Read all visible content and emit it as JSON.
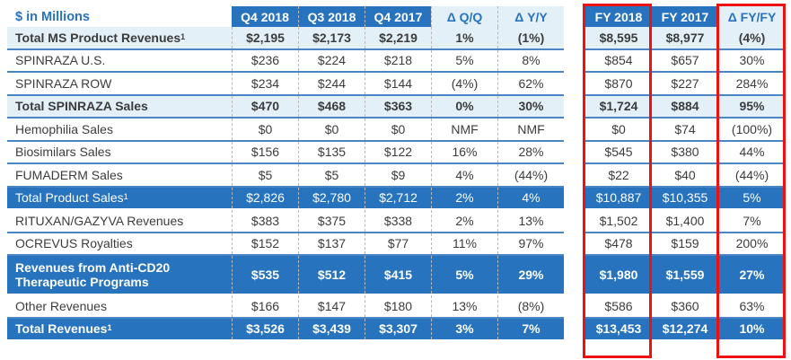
{
  "table": {
    "title": "$ in Millions",
    "quarter_headers": [
      "Q4 2018",
      "Q3 2018",
      "Q4 2017",
      "Δ Q/Q",
      "Δ Y/Y"
    ],
    "fy_headers": [
      "FY 2018",
      "FY 2017",
      "Δ FY/FY"
    ],
    "rows": [
      {
        "label": "Total MS Product Revenues",
        "sup": "1",
        "style": "highlight",
        "q": [
          "$2,195",
          "$2,173",
          "$2,219",
          "1%",
          "(1%)"
        ],
        "fy": [
          "$8,595",
          "$8,977",
          "(4%)"
        ]
      },
      {
        "label": "SPINRAZA U.S.",
        "sup": "",
        "style": "normal",
        "q": [
          "$236",
          "$224",
          "$218",
          "5%",
          "8%"
        ],
        "fy": [
          "$854",
          "$657",
          "30%"
        ]
      },
      {
        "label": "SPINRAZA ROW",
        "sup": "",
        "style": "normal",
        "q": [
          "$234",
          "$244",
          "$144",
          "(4%)",
          "62%"
        ],
        "fy": [
          "$870",
          "$227",
          "284%"
        ]
      },
      {
        "label": "Total SPINRAZA Sales",
        "sup": "",
        "style": "highlight",
        "q": [
          "$470",
          "$468",
          "$363",
          "0%",
          "30%"
        ],
        "fy": [
          "$1,724",
          "$884",
          "95%"
        ]
      },
      {
        "label": "Hemophilia Sales",
        "sup": "",
        "style": "normal",
        "q": [
          "$0",
          "$0",
          "$0",
          "NMF",
          "NMF"
        ],
        "fy": [
          "$0",
          "$74",
          "(100%)"
        ]
      },
      {
        "label": "Biosimilars Sales",
        "sup": "",
        "style": "normal",
        "q": [
          "$156",
          "$135",
          "$122",
          "16%",
          "28%"
        ],
        "fy": [
          "$545",
          "$380",
          "44%"
        ]
      },
      {
        "label": "FUMADERM Sales",
        "sup": "",
        "style": "normal",
        "q": [
          "$5",
          "$5",
          "$9",
          "4%",
          "(44%)"
        ],
        "fy": [
          "$22",
          "$40",
          "(44%)"
        ]
      },
      {
        "label": "Total Product Sales",
        "sup": "1",
        "style": "blue",
        "q": [
          "$2,826",
          "$2,780",
          "$2,712",
          "2%",
          "4%"
        ],
        "fy": [
          "$10,887",
          "$10,355",
          "5%"
        ]
      },
      {
        "label": "RITUXAN/GAZYVA Revenues",
        "sup": "",
        "style": "normal",
        "q": [
          "$383",
          "$375",
          "$338",
          "2%",
          "13%"
        ],
        "fy": [
          "$1,502",
          "$1,400",
          "7%"
        ]
      },
      {
        "label": "OCREVUS Royalties",
        "sup": "",
        "style": "normal",
        "q": [
          "$152",
          "$137",
          "$77",
          "11%",
          "97%"
        ],
        "fy": [
          "$478",
          "$159",
          "200%"
        ]
      },
      {
        "label": "Revenues from Anti-CD20 Therapeutic Programs",
        "sup": "",
        "style": "blue-bold-tall",
        "q": [
          "$535",
          "$512",
          "$415",
          "5%",
          "29%"
        ],
        "fy": [
          "$1,980",
          "$1,559",
          "27%"
        ]
      },
      {
        "label": "Other Revenues",
        "sup": "",
        "style": "normal",
        "q": [
          "$166",
          "$147",
          "$180",
          "13%",
          "(8%)"
        ],
        "fy": [
          "$586",
          "$360",
          "63%"
        ]
      },
      {
        "label": "Total Revenues",
        "sup": "1",
        "style": "blue-bold",
        "q": [
          "$3,526",
          "$3,439",
          "$3,307",
          "3%",
          "7%"
        ],
        "fy": [
          "$13,453",
          "$12,274",
          "10%"
        ]
      }
    ]
  },
  "colors": {
    "brand_blue": "#2773be",
    "light_blue": "#e4f0f8",
    "highlight_border": "#ee1111"
  }
}
